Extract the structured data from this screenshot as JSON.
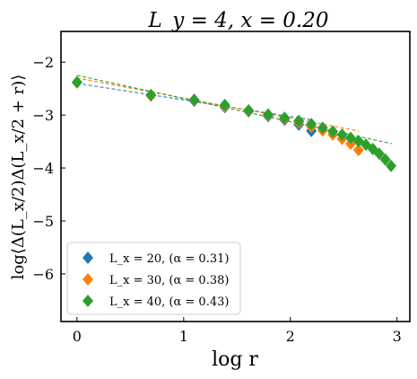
{
  "chart_data": {
    "type": "scatter",
    "title": "L_y = 4, x = 0.20",
    "xlabel": "log r",
    "ylabel": "log⟨Δ(L_x/2)Δ(L_x/2 + r)⟩",
    "xlim": [
      -0.15,
      3.12
    ],
    "ylim": [
      -6.9,
      -1.42
    ],
    "xticks": [
      0,
      1,
      2,
      3
    ],
    "yticks": [
      -6,
      -5,
      -4,
      -3,
      -2
    ],
    "xtick_labels": [
      "0",
      "1",
      "2",
      "3"
    ],
    "ytick_labels": [
      "−6",
      "−5",
      "−4",
      "−3",
      "−2"
    ],
    "grid": false,
    "legend_position": "lower-left",
    "series": [
      {
        "name": "L_x = 20,  (α = 0.31)",
        "color": "#1f77b4",
        "marker": "diamond",
        "x": [
          0.0,
          0.693,
          1.099,
          1.386,
          1.609,
          1.792,
          1.946,
          2.079,
          2.197
        ],
        "y": [
          -2.38,
          -2.63,
          -2.73,
          -2.85,
          -2.93,
          -3.02,
          -3.09,
          -3.18,
          -3.3
        ],
        "fit": {
          "x": [
            0.0,
            2.2
          ],
          "y": [
            -2.4,
            -3.09
          ]
        }
      },
      {
        "name": "L_x = 30,  (α = 0.38)",
        "color": "#ff7f0e",
        "marker": "diamond",
        "x": [
          0.0,
          0.693,
          1.099,
          1.386,
          1.609,
          1.792,
          1.946,
          2.079,
          2.197,
          2.303,
          2.398,
          2.485,
          2.565,
          2.639
        ],
        "y": [
          -2.38,
          -2.63,
          -2.72,
          -2.83,
          -2.92,
          -3.0,
          -3.07,
          -3.14,
          -3.22,
          -3.29,
          -3.37,
          -3.45,
          -3.54,
          -3.66
        ],
        "fit": {
          "x": [
            0.0,
            2.64
          ],
          "y": [
            -2.3,
            -3.3
          ]
        }
      },
      {
        "name": "L_x = 40,  (α = 0.43)",
        "color": "#2ca02c",
        "marker": "diamond",
        "x": [
          0.0,
          0.693,
          1.099,
          1.386,
          1.609,
          1.792,
          1.946,
          2.079,
          2.197,
          2.303,
          2.398,
          2.485,
          2.565,
          2.639,
          2.708,
          2.773,
          2.833,
          2.89,
          2.944
        ],
        "y": [
          -2.38,
          -2.62,
          -2.71,
          -2.81,
          -2.91,
          -2.99,
          -3.05,
          -3.11,
          -3.17,
          -3.24,
          -3.31,
          -3.37,
          -3.43,
          -3.49,
          -3.56,
          -3.64,
          -3.73,
          -3.84,
          -3.96
        ],
        "fit": {
          "x": [
            0.0,
            2.95
          ],
          "y": [
            -2.25,
            -3.54
          ]
        }
      }
    ]
  }
}
